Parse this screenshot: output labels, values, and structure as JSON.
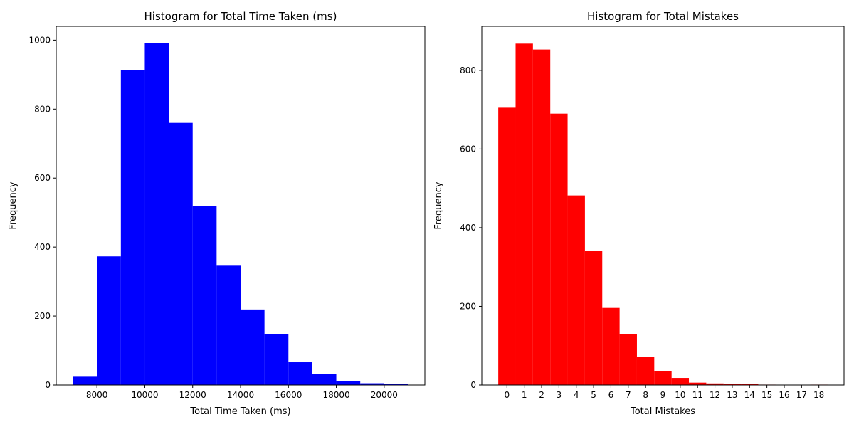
{
  "chart_data": [
    {
      "type": "bar",
      "title": "Histogram for Total Time Taken (ms)",
      "xlabel": "Total Time Taken (ms)",
      "ylabel": "Frequency",
      "bin_edges": [
        7000,
        8000,
        9000,
        10000,
        11000,
        12000,
        13000,
        14000,
        15000,
        16000,
        17000,
        18000,
        19000,
        20000,
        21000
      ],
      "values": [
        24,
        373,
        913,
        991,
        760,
        519,
        346,
        219,
        148,
        66,
        33,
        12,
        5,
        4
      ],
      "xlim": [
        6300,
        21700
      ],
      "ylim": [
        0,
        1040
      ],
      "xticks": [
        8000,
        10000,
        12000,
        14000,
        16000,
        18000,
        20000
      ],
      "yticks": [
        0,
        200,
        400,
        600,
        800,
        1000
      ],
      "color": "#0000ff",
      "grid": false
    },
    {
      "type": "bar",
      "title": "Histogram for Total Mistakes",
      "xlabel": "Total Mistakes",
      "ylabel": "Frequency",
      "bin_edges": [
        -0.5,
        0.5,
        1.5,
        2.5,
        3.5,
        4.5,
        5.5,
        6.5,
        7.5,
        8.5,
        9.5,
        10.5,
        11.5,
        12.5,
        13.5,
        14.5,
        15.5,
        16.5,
        17.5,
        18.5
      ],
      "values": [
        705,
        868,
        853,
        690,
        482,
        342,
        196,
        129,
        72,
        36,
        18,
        6,
        4,
        2,
        2,
        1,
        0,
        0,
        1
      ],
      "xlim": [
        -1.45,
        19.45
      ],
      "ylim": [
        0,
        912
      ],
      "xticks": [
        0,
        1,
        2,
        3,
        4,
        5,
        6,
        7,
        8,
        9,
        10,
        11,
        12,
        13,
        14,
        15,
        16,
        17,
        18
      ],
      "yticks": [
        0,
        200,
        400,
        600,
        800
      ],
      "color": "#ff0000",
      "grid": false
    }
  ]
}
